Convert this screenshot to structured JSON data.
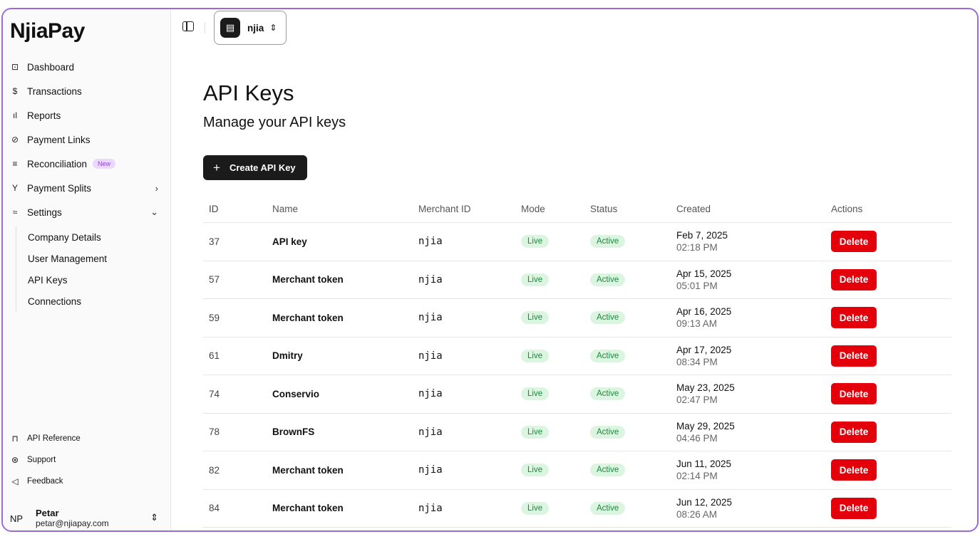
{
  "brand": {
    "logo": "NjiaPay"
  },
  "sidebar": {
    "items": [
      {
        "label": "Dashboard",
        "icon": "dashboard-icon",
        "glyph": "⊡"
      },
      {
        "label": "Transactions",
        "icon": "dollar-circle-icon",
        "glyph": "$"
      },
      {
        "label": "Reports",
        "icon": "bar-chart-icon",
        "glyph": "ıl"
      },
      {
        "label": "Payment Links",
        "icon": "link-icon",
        "glyph": "⊘"
      },
      {
        "label": "Reconciliation",
        "icon": "list-icon",
        "glyph": "≡",
        "badge": "New"
      },
      {
        "label": "Payment Splits",
        "icon": "split-icon",
        "glyph": "Y"
      },
      {
        "label": "Settings",
        "icon": "sliders-icon",
        "glyph": "≈"
      }
    ],
    "settings_sub": [
      "Company Details",
      "User Management",
      "API Keys",
      "Connections"
    ],
    "footer": [
      {
        "label": "API Reference",
        "icon": "book-icon",
        "glyph": "⊓"
      },
      {
        "label": "Support",
        "icon": "lifebuoy-icon",
        "glyph": "⊛"
      },
      {
        "label": "Feedback",
        "icon": "send-icon",
        "glyph": "◁"
      }
    ],
    "user": {
      "initials": "NP",
      "name": "Petar",
      "email": "petar@njiapay.com"
    }
  },
  "topbar": {
    "merchant": "njia"
  },
  "main": {
    "title": "API Keys",
    "subtitle": "Manage your API keys",
    "create_button": "Create API Key"
  },
  "table": {
    "headers": [
      "ID",
      "Name",
      "Merchant ID",
      "Mode",
      "Status",
      "Created",
      "Actions"
    ],
    "rows": [
      {
        "id": "37",
        "name": "API key",
        "merchant_id": "njia",
        "mode": "Live",
        "status": "Active",
        "date": "Feb 7, 2025",
        "time": "02:18 PM",
        "action": "Delete"
      },
      {
        "id": "57",
        "name": "Merchant token",
        "merchant_id": "njia",
        "mode": "Live",
        "status": "Active",
        "date": "Apr 15, 2025",
        "time": "05:01 PM",
        "action": "Delete"
      },
      {
        "id": "59",
        "name": "Merchant token",
        "merchant_id": "njia",
        "mode": "Live",
        "status": "Active",
        "date": "Apr 16, 2025",
        "time": "09:13 AM",
        "action": "Delete"
      },
      {
        "id": "61",
        "name": "Dmitry",
        "merchant_id": "njia",
        "mode": "Live",
        "status": "Active",
        "date": "Apr 17, 2025",
        "time": "08:34 PM",
        "action": "Delete"
      },
      {
        "id": "74",
        "name": "Conservio",
        "merchant_id": "njia",
        "mode": "Live",
        "status": "Active",
        "date": "May 23, 2025",
        "time": "02:47 PM",
        "action": "Delete"
      },
      {
        "id": "78",
        "name": "BrownFS",
        "merchant_id": "njia",
        "mode": "Live",
        "status": "Active",
        "date": "May 29, 2025",
        "time": "04:46 PM",
        "action": "Delete"
      },
      {
        "id": "82",
        "name": "Merchant token",
        "merchant_id": "njia",
        "mode": "Live",
        "status": "Active",
        "date": "Jun 11, 2025",
        "time": "02:14 PM",
        "action": "Delete"
      },
      {
        "id": "84",
        "name": "Merchant token",
        "merchant_id": "njia",
        "mode": "Live",
        "status": "Active",
        "date": "Jun 12, 2025",
        "time": "08:26 AM",
        "action": "Delete"
      }
    ]
  },
  "colors": {
    "accent_frame": "#9b6ad6",
    "danger": "#e3000b",
    "success_bg": "#dcf5e1",
    "success_text": "#178a3b",
    "badge_new_bg": "#ead9fb"
  }
}
